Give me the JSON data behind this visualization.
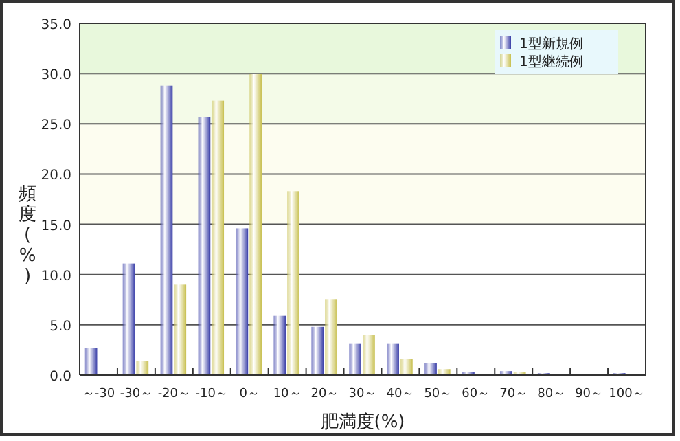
{
  "chart_data": {
    "type": "bar",
    "xlabel": "肥満度(%)",
    "ylabel": "頻度(%)",
    "categories": [
      "～-30",
      "-30～",
      "-20～",
      "-10～",
      "0～",
      "10～",
      "20～",
      "30～",
      "40～",
      "50～",
      "60～",
      "70～",
      "80～",
      "90～",
      "100～"
    ],
    "series": [
      {
        "name": "1型新規例",
        "color": "#3a3fa8",
        "values": [
          2.7,
          11.1,
          28.8,
          25.7,
          14.6,
          5.9,
          4.8,
          3.1,
          3.1,
          1.2,
          0.3,
          0.4,
          0.2,
          0,
          0.2
        ]
      },
      {
        "name": "1型継続例",
        "color": "#c8c050",
        "values": [
          0,
          1.4,
          9.0,
          27.3,
          30.0,
          18.3,
          7.5,
          4.0,
          1.6,
          0.6,
          null,
          0.3,
          null,
          0,
          null
        ]
      }
    ],
    "ylim": [
      0,
      35
    ],
    "yticks": [
      {
        "value": 0,
        "label": "0.0"
      },
      {
        "value": 5,
        "label": "5.0"
      },
      {
        "value": 10,
        "label": "10.0"
      },
      {
        "value": 15,
        "label": "15.0"
      },
      {
        "value": 20,
        "label": "20.0"
      },
      {
        "value": 25,
        "label": "25.0"
      },
      {
        "value": 30,
        "label": "30.0"
      },
      {
        "value": 35,
        "label": "35.0"
      }
    ],
    "bands": [
      {
        "axis": "y",
        "from": 30,
        "to": 35,
        "color": "#e8f8dc"
      },
      {
        "axis": "y",
        "from": 25,
        "to": 30,
        "color": "#f4fbe8"
      },
      {
        "axis": "y",
        "from": 15,
        "to": 25,
        "color": "#fdfdf0"
      }
    ],
    "grid": "y",
    "legend": "top right"
  }
}
